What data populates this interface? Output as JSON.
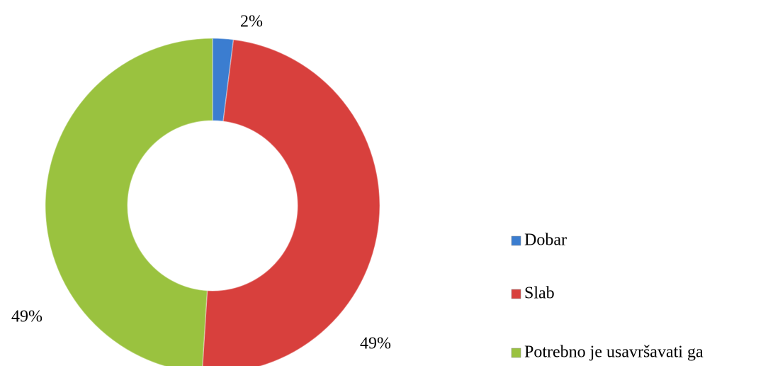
{
  "chart_data": {
    "type": "donut",
    "categories": [
      "Dobar",
      "Slab",
      "Potrebno je usavršavati ga"
    ],
    "values": [
      2,
      49,
      49
    ],
    "value_labels": [
      "2%",
      "49%",
      "49%"
    ],
    "colors": [
      "#3b7dd0",
      "#d8403d",
      "#9ac23f"
    ],
    "legend": "right"
  }
}
